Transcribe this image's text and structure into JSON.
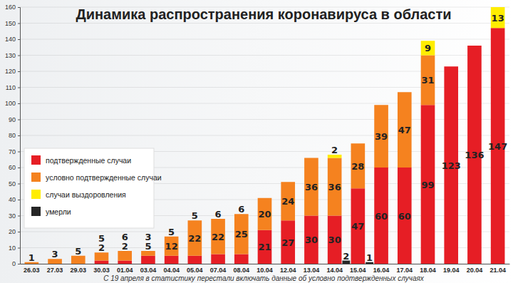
{
  "chart_data": {
    "type": "bar",
    "title": "Динамика распространения коронавируса в области",
    "subtitle": "С 19 апреля в статистику перестали включать данные об условно подтвержденных случаях",
    "categories": [
      "26.03",
      "27.03",
      "29.03",
      "30.03",
      "01.04",
      "03.04",
      "04.04",
      "05.04",
      "07.04",
      "08.04",
      "10.04",
      "12.04",
      "13.04",
      "14.04",
      "15.04",
      "16.04",
      "17.04",
      "18.04",
      "19.04",
      "20.04",
      "21.04"
    ],
    "series": [
      {
        "name": "подтвержденные случаи",
        "color": "#e61e25",
        "values": [
          null,
          null,
          null,
          2,
          2,
          5,
          5,
          5,
          6,
          6,
          21,
          27,
          30,
          30,
          47,
          60,
          60,
          99,
          123,
          136,
          147
        ]
      },
      {
        "name": "условно подтвержденные случаи",
        "color": "#f5821f",
        "values": [
          1,
          3,
          5,
          5,
          6,
          3,
          12,
          22,
          22,
          25,
          20,
          24,
          36,
          36,
          28,
          39,
          47,
          31,
          null,
          null,
          null
        ]
      },
      {
        "name": "случаи выздоровления",
        "color": "#ffed00",
        "values": [
          null,
          null,
          null,
          null,
          null,
          null,
          null,
          null,
          null,
          null,
          null,
          null,
          null,
          2,
          null,
          null,
          null,
          9,
          null,
          null,
          13
        ]
      },
      {
        "name": "умерли",
        "color": "#262626",
        "type": "bar",
        "values": [
          null,
          null,
          null,
          null,
          null,
          null,
          null,
          null,
          null,
          null,
          null,
          null,
          null,
          2,
          1,
          null,
          null,
          null,
          null,
          null,
          null
        ]
      }
    ],
    "stacked": true,
    "data_labels": true,
    "legend": "lower left",
    "grid": true,
    "ylim": [
      0,
      160
    ],
    "yticks": [
      0,
      10,
      20,
      30,
      40,
      50,
      60,
      70,
      80,
      90,
      100,
      110,
      120,
      130,
      140,
      150,
      160
    ]
  }
}
